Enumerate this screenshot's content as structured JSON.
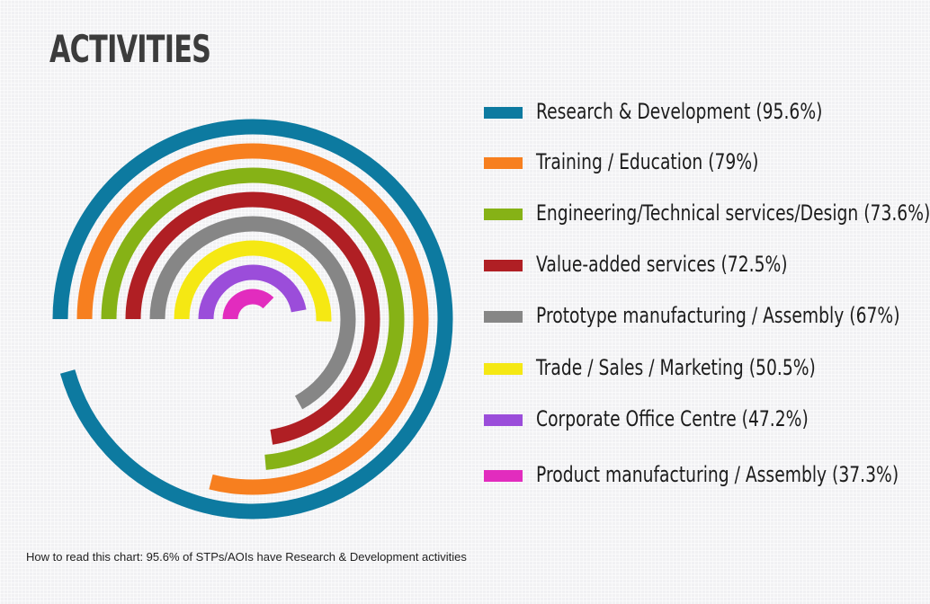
{
  "chart_data": {
    "type": "radial-bar",
    "title": "ACTIVITIES",
    "categories": [
      "Research & Development",
      "Training / Education",
      "Engineering/Technical services/Design",
      "Value-added services",
      "Prototype manufacturing / Assembly",
      "Trade / Sales / Marketing",
      "Corporate Office Centre",
      "Product manufacturing / Assembly"
    ],
    "values": [
      95.6,
      79,
      73.6,
      72.5,
      67,
      50.5,
      47.2,
      37.3
    ],
    "value_unit": "%",
    "max_value": 100,
    "legend": [
      {
        "label": "Research & Development (95.6%)",
        "color": "#0d7aa0"
      },
      {
        "label": "Training / Education (79%)",
        "color": "#f77f1f"
      },
      {
        "label": "Engineering/Technical services/Design (73.6%)",
        "color": "#86b216"
      },
      {
        "label": "Value-added services (72.5%)",
        "color": "#b01f24"
      },
      {
        "label": "Prototype manufacturing / Assembly (67%)",
        "color": "#868686"
      },
      {
        "label": "Trade / Sales / Marketing (50.5%)",
        "color": "#f5e813"
      },
      {
        "label": "Corporate Office Centre (47.2%)",
        "color": "#9b4dda"
      },
      {
        "label": "Product manufacturing / Assembly (37.3%)",
        "color": "#e22cbe"
      }
    ],
    "legend_position": "right",
    "footnote": "How to read this chart: 95.6% of STPs/AOIs have Research & Development activities"
  }
}
